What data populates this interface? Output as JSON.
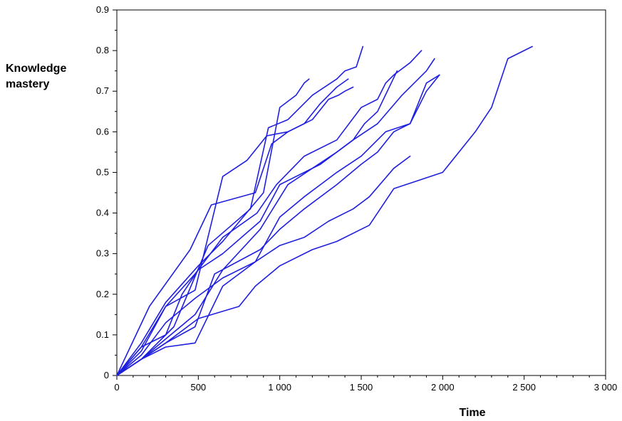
{
  "chart_data": {
    "type": "line",
    "title": "",
    "xlabel": "Time",
    "ylabel_lines": [
      "Knowledge",
      "mastery"
    ],
    "xlim": [
      0,
      3000
    ],
    "ylim": [
      0,
      0.9
    ],
    "x_ticks": [
      0,
      500,
      1000,
      1500,
      2000,
      2500,
      3000
    ],
    "x_tick_labels": [
      "0",
      "500",
      "1 000",
      "1 500",
      "2 000",
      "2 500",
      "3 000"
    ],
    "y_ticks": [
      0,
      0.1,
      0.2,
      0.3,
      0.4,
      0.5,
      0.6,
      0.7,
      0.8,
      0.9
    ],
    "y_tick_labels": [
      "0",
      "0.1",
      "0.2",
      "0.3",
      "0.4",
      "0.5",
      "0.6",
      "0.7",
      "0.8",
      "0.9"
    ],
    "grid": false,
    "legend": false,
    "line_color": "#1f1fe0",
    "series": [
      {
        "x": [
          0,
          150,
          300,
          500,
          650,
          900,
          1000,
          1100,
          1150,
          1180
        ],
        "y": [
          0,
          0.08,
          0.18,
          0.27,
          0.33,
          0.45,
          0.66,
          0.69,
          0.72,
          0.73
        ]
      },
      {
        "x": [
          0,
          150,
          300,
          480,
          650,
          800,
          920,
          1050,
          1200,
          1300,
          1360,
          1400,
          1450
        ],
        "y": [
          0,
          0.07,
          0.17,
          0.21,
          0.49,
          0.53,
          0.59,
          0.6,
          0.63,
          0.68,
          0.69,
          0.7,
          0.71
        ]
      },
      {
        "x": [
          0,
          150,
          350,
          560,
          820,
          930,
          1050,
          1200,
          1350,
          1400,
          1470,
          1510
        ],
        "y": [
          0,
          0.04,
          0.12,
          0.32,
          0.41,
          0.61,
          0.63,
          0.69,
          0.73,
          0.75,
          0.76,
          0.81
        ]
      },
      {
        "x": [
          0,
          200,
          450,
          580,
          850,
          950,
          1050,
          1150,
          1250,
          1350,
          1420
        ],
        "y": [
          0,
          0.17,
          0.31,
          0.42,
          0.45,
          0.57,
          0.6,
          0.62,
          0.67,
          0.71,
          0.73
        ]
      },
      {
        "x": [
          0,
          150,
          300,
          480,
          650,
          860,
          980,
          1150,
          1350,
          1500,
          1600,
          1650,
          1700,
          1800,
          1870
        ],
        "y": [
          0,
          0.06,
          0.17,
          0.25,
          0.34,
          0.4,
          0.47,
          0.54,
          0.58,
          0.66,
          0.68,
          0.72,
          0.74,
          0.77,
          0.8
        ]
      },
      {
        "x": [
          0,
          150,
          300,
          400,
          500,
          650,
          880,
          1000,
          1250,
          1450,
          1600,
          1750,
          1900,
          1950
        ],
        "y": [
          0,
          0.07,
          0.1,
          0.2,
          0.26,
          0.3,
          0.38,
          0.47,
          0.52,
          0.58,
          0.62,
          0.69,
          0.75,
          0.78
        ]
      },
      {
        "x": [
          0,
          150,
          300,
          480,
          650,
          880,
          1050,
          1200,
          1350,
          1450,
          1520,
          1600,
          1720
        ],
        "y": [
          0,
          0.04,
          0.09,
          0.15,
          0.26,
          0.36,
          0.47,
          0.51,
          0.55,
          0.58,
          0.62,
          0.65,
          0.75
        ]
      },
      {
        "x": [
          0,
          150,
          300,
          480,
          650,
          850,
          1000,
          1150,
          1250,
          1350,
          1500,
          1650,
          1800,
          1900,
          1980
        ],
        "y": [
          0,
          0.05,
          0.13,
          0.19,
          0.24,
          0.28,
          0.39,
          0.44,
          0.47,
          0.5,
          0.54,
          0.6,
          0.62,
          0.7,
          0.74
        ]
      },
      {
        "x": [
          0,
          150,
          300,
          480,
          600,
          880,
          1000,
          1150,
          1350,
          1500,
          1600,
          1700,
          1800,
          1900,
          1980
        ],
        "y": [
          0,
          0.04,
          0.08,
          0.12,
          0.25,
          0.31,
          0.36,
          0.41,
          0.47,
          0.52,
          0.55,
          0.6,
          0.62,
          0.72,
          0.74
        ]
      },
      {
        "x": [
          0,
          150,
          300,
          480,
          650,
          850,
          1000,
          1150,
          1300,
          1450,
          1550,
          1700,
          1800
        ],
        "y": [
          0,
          0.04,
          0.07,
          0.08,
          0.22,
          0.28,
          0.32,
          0.34,
          0.38,
          0.41,
          0.44,
          0.51,
          0.54
        ]
      },
      {
        "x": [
          0,
          150,
          300,
          500,
          750,
          850,
          1000,
          1200,
          1350,
          1550,
          1700,
          2000,
          2200,
          2300,
          2400,
          2550
        ],
        "y": [
          0,
          0.04,
          0.08,
          0.14,
          0.17,
          0.22,
          0.27,
          0.31,
          0.33,
          0.37,
          0.46,
          0.5,
          0.6,
          0.66,
          0.78,
          0.81
        ]
      }
    ]
  }
}
